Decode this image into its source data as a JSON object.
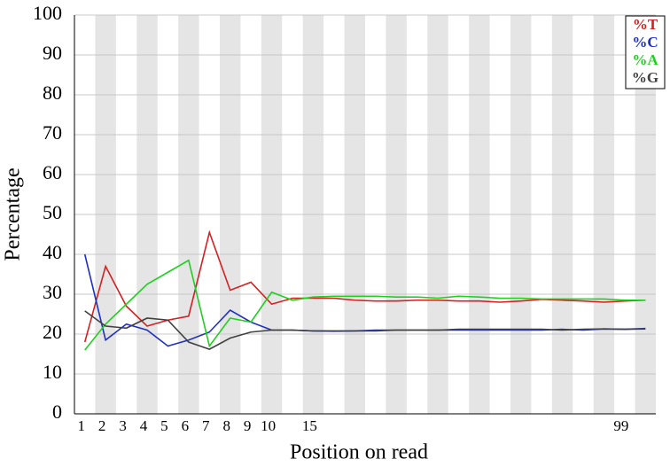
{
  "chart_data": {
    "type": "line",
    "x_label": "Position on read",
    "y_label": "Percentage",
    "categories": [
      "1",
      "2",
      "3",
      "4",
      "5",
      "6",
      "7",
      "8",
      "9",
      "10",
      null,
      "15",
      null,
      null,
      null,
      null,
      null,
      null,
      null,
      null,
      null,
      null,
      null,
      null,
      null,
      null,
      "99",
      null
    ],
    "series": [
      {
        "name": "%T",
        "color": "#d42020",
        "values": [
          18,
          37,
          27,
          22,
          23.5,
          24.5,
          45.5,
          31,
          33,
          27.5,
          29,
          29,
          29,
          28.5,
          28.3,
          28.3,
          28.5,
          28.5,
          28.3,
          28.3,
          28,
          28.3,
          28.7,
          28.5,
          28.3,
          28,
          28.3,
          28.5
        ]
      },
      {
        "name": "%C",
        "color": "#2030c0",
        "values": [
          40,
          18.5,
          22.5,
          21,
          17,
          18.5,
          20.5,
          26,
          23,
          21,
          21,
          20.8,
          20.7,
          20.8,
          21,
          21,
          21,
          21,
          21,
          21,
          21,
          21,
          21,
          21.2,
          21,
          21.3,
          21.2,
          21.4
        ]
      },
      {
        "name": "%A",
        "color": "#20d020",
        "values": [
          16,
          22.5,
          27.5,
          32.5,
          35.5,
          38.5,
          17,
          24,
          23,
          30.5,
          28.5,
          29.3,
          29.5,
          29.5,
          29.5,
          29.3,
          29.3,
          29,
          29.5,
          29.3,
          29,
          29,
          28.8,
          28.8,
          28.8,
          28.8,
          28.5,
          28.5
        ]
      },
      {
        "name": "%G",
        "color": "#404040",
        "values": [
          25.8,
          22,
          21.5,
          24,
          23.5,
          18,
          16.2,
          19,
          20.5,
          21,
          21,
          20.8,
          20.8,
          20.8,
          20.8,
          21,
          21,
          21,
          21.2,
          21.2,
          21.2,
          21.2,
          21.2,
          21,
          21.2,
          21.3,
          21.2,
          21.3
        ]
      }
    ],
    "ylim": [
      0,
      100
    ],
    "yticks": [
      0,
      10,
      20,
      30,
      40,
      50,
      60,
      70,
      80,
      90,
      100
    ],
    "grid": true,
    "legend": "top-right"
  }
}
